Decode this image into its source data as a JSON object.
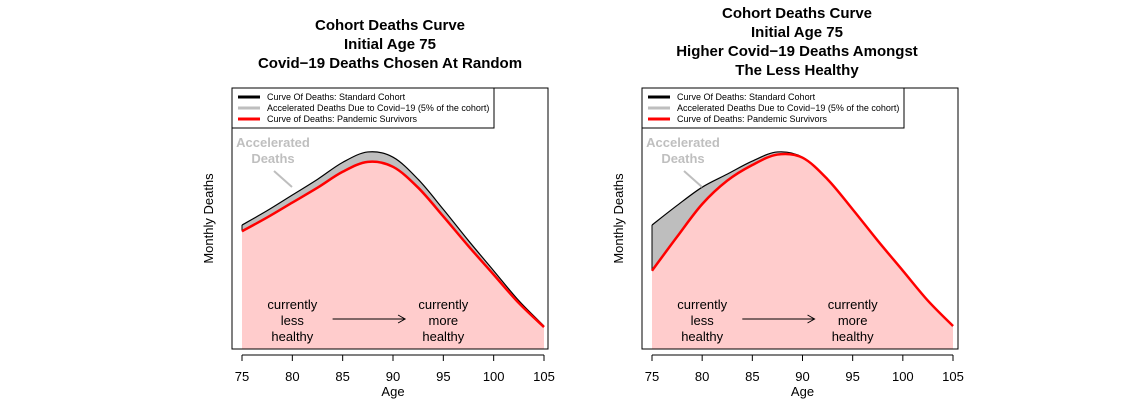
{
  "chart_data": [
    {
      "type": "area",
      "title": [
        "Cohort Deaths Curve",
        "Initial Age 75",
        "Covid−19 Deaths Chosen At Random"
      ],
      "xlabel": "Age",
      "ylabel": "Monthly Deaths",
      "xlim": [
        75,
        105
      ],
      "xticks": [
        75,
        80,
        85,
        90,
        95,
        100,
        105
      ],
      "ylim": [
        0,
        1
      ],
      "grid": false,
      "legend_placement": "top-left",
      "x": [
        75,
        77.5,
        80,
        82.5,
        85,
        87.5,
        90,
        92.5,
        95,
        97.5,
        100,
        102.5,
        105
      ],
      "series": [
        {
          "name": "Curve Of Deaths: Standard Cohort",
          "color": "#000000",
          "values": [
            0.475,
            0.53,
            0.59,
            0.65,
            0.715,
            0.755,
            0.735,
            0.65,
            0.535,
            0.415,
            0.3,
            0.185,
            0.088
          ]
        },
        {
          "name": "Accelerated Deaths Due to Covid−19 (5% of the cohort)",
          "color": "#bebebe"
        },
        {
          "name": "Curve of Deaths: Pandemic Survivors",
          "color": "#ff0000",
          "fill": "#ffcccc",
          "values": [
            0.451,
            0.504,
            0.561,
            0.618,
            0.679,
            0.717,
            0.698,
            0.618,
            0.508,
            0.394,
            0.285,
            0.176,
            0.084
          ]
        }
      ],
      "annotations": {
        "accelerated": [
          "Accelerated",
          "Deaths"
        ],
        "left": [
          "currently",
          "less",
          "healthy"
        ],
        "right": [
          "currently",
          "more",
          "healthy"
        ]
      }
    },
    {
      "type": "area",
      "title": [
        "Cohort Deaths Curve",
        "Initial Age 75",
        "Higher Covid−19 Deaths Amongst",
        "The Less Healthy"
      ],
      "xlabel": "Age",
      "ylabel": "Monthly Deaths",
      "xlim": [
        75,
        105
      ],
      "xticks": [
        75,
        80,
        85,
        90,
        95,
        100,
        105
      ],
      "ylim": [
        0,
        1
      ],
      "grid": false,
      "legend_placement": "top-left",
      "x": [
        75,
        77.5,
        80,
        82.5,
        85,
        87.5,
        90,
        92.5,
        95,
        97.5,
        100,
        102.5,
        105
      ],
      "series": [
        {
          "name": "Curve Of Deaths: Standard Cohort",
          "color": "#000000",
          "values": [
            0.475,
            0.55,
            0.62,
            0.67,
            0.72,
            0.755,
            0.735,
            0.65,
            0.535,
            0.415,
            0.3,
            0.185,
            0.088
          ]
        },
        {
          "name": "Accelerated Deaths Due to Covid−19 (5% of the cohort)",
          "color": "#bebebe"
        },
        {
          "name": "Curve of Deaths: Pandemic Survivors",
          "color": "#ff0000",
          "fill": "#ffcccc",
          "values": [
            0.3,
            0.43,
            0.555,
            0.645,
            0.705,
            0.745,
            0.733,
            0.65,
            0.535,
            0.415,
            0.3,
            0.185,
            0.088
          ]
        }
      ],
      "annotations": {
        "accelerated": [
          "Accelerated",
          "Deaths"
        ],
        "left": [
          "currently",
          "less",
          "healthy"
        ],
        "right": [
          "currently",
          "more",
          "healthy"
        ]
      }
    }
  ]
}
